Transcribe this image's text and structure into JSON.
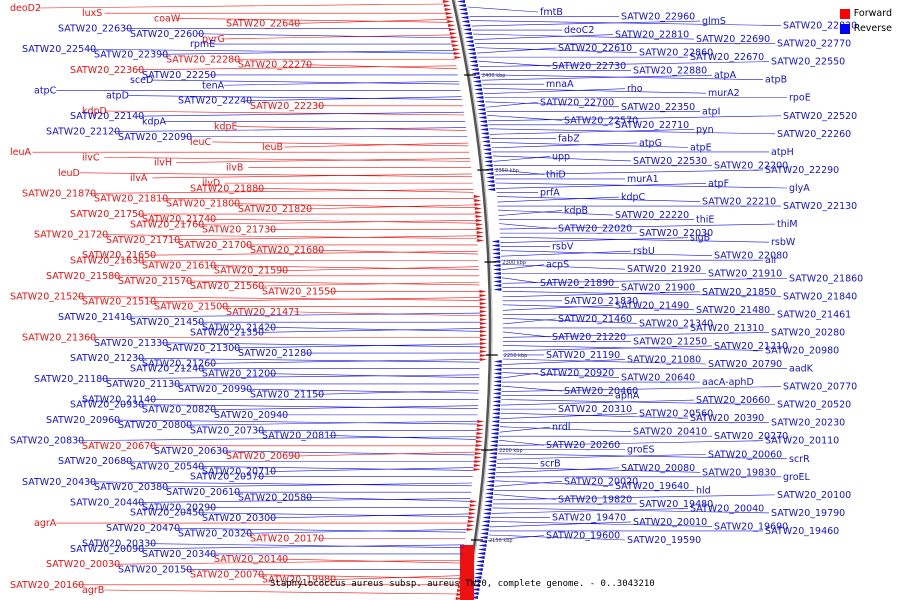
{
  "caption": "Staphylococcus aureus subsp. aureus TW20, complete genome. - 0..3043210",
  "legend": [
    {
      "label": "Forward",
      "color": "#ff0000"
    },
    {
      "label": "Reverse",
      "color": "#0000ff"
    }
  ],
  "colors": {
    "forward": "#ee1111",
    "reverse": "#1111dd",
    "backbone": "#888888"
  },
  "ticks": [
    "2400 kbp",
    "2350 kbp",
    "2300 kbp",
    "2250 kbp",
    "2200 kbp",
    "2150 kbp"
  ],
  "left_labels": [
    "deoD2",
    "luxS",
    "coaW",
    "SATW20_22640",
    "SATW20_22630",
    "SATW20_22600",
    "pyrG",
    "rpmE",
    "SATW20_22540",
    "SATW20_22390",
    "SATW20_22280",
    "SATW20_22270",
    "SATW20_22360",
    "SATW20_22250",
    "sceD",
    "tenA",
    "atpC",
    "atpD",
    "SATW20_22240",
    "SATW20_22230",
    "kdpD",
    "SATW20_22140",
    "kdpA",
    "kdpE",
    "SATW20_22120",
    "SATW20_22090",
    "leuC",
    "leuB",
    "leuA",
    "ilvC",
    "ilvH",
    "ilvB",
    "leuD",
    "ilvA",
    "ilvD",
    "SATW20_21880",
    "SATW20_21870",
    "SATW20_21810",
    "SATW20_21800",
    "SATW20_21820",
    "SATW20_21750",
    "SATW20_21740",
    "SATW20_21760",
    "SATW20_21730",
    "SATW20_21720",
    "SATW20_21710",
    "SATW20_21700",
    "SATW20_21680",
    "SATW20_21650",
    "SATW20_21630",
    "SATW20_21610",
    "SATW20_21590",
    "SATW20_21580",
    "SATW20_21570",
    "SATW20_21560",
    "SATW20_21550",
    "SATW20_21520",
    "SATW20_21510",
    "SATW20_21500",
    "SATW20_21471",
    "SATW20_21410",
    "SATW20_21450",
    "SATW20_21420",
    "SATW20_21350",
    "SATW20_21360",
    "SATW20_21330",
    "SATW20_21300",
    "SATW20_21280",
    "SATW20_21230",
    "SATW20_21260",
    "SATW20_21240",
    "SATW20_21200",
    "SATW20_21180",
    "SATW20_21130",
    "SATW20_20990",
    "SATW20_21150",
    "SATW20_21140",
    "SATW20_20930",
    "SATW20_20820",
    "SATW20_20940",
    "SATW20_20960",
    "SATW20_20800",
    "SATW20_20730",
    "SATW20_20810",
    "SATW20_20830",
    "SATW20_20670",
    "SATW20_20630",
    "SATW20_20690",
    "SATW20_20680",
    "SATW20_20540",
    "SATW20_20710",
    "SATW20_20570",
    "SATW20_20430",
    "SATW20_20380",
    "SATW20_20610",
    "SATW20_20580",
    "SATW20_20440",
    "SATW20_20290",
    "SATW20_20450",
    "SATW20_20300",
    "agrA",
    "SATW20_20470",
    "SATW20_20320",
    "SATW20_20170",
    "SATW20_20330",
    "SATW20_20090",
    "SATW20_20340",
    "SATW20_20140",
    "SATW20_20030",
    "SATW20_20150",
    "SATW20_20070",
    "SATW20_19980",
    "SATW20_20160",
    "agrB"
  ],
  "right_labels": [
    "fmtB",
    "SATW20_22960",
    "glmS",
    "SATW20_22820",
    "deoC2",
    "SATW20_22810",
    "SATW20_22690",
    "SATW20_22770",
    "SATW20_22610",
    "SATW20_22860",
    "SATW20_22670",
    "SATW20_22550",
    "SATW20_22730",
    "SATW20_22880",
    "atpA",
    "atpB",
    "mnaA",
    "rho",
    "murA2",
    "rpoE",
    "SATW20_22700",
    "SATW20_22350",
    "atpI",
    "SATW20_22520",
    "SATW20_22570",
    "SATW20_22710",
    "pyn",
    "SATW20_22260",
    "fabZ",
    "atpG",
    "atpE",
    "atpH",
    "upp",
    "SATW20_22530",
    "SATW20_22200",
    "SATW20_22290",
    "thiD",
    "murA1",
    "atpF",
    "glyA",
    "prfA",
    "kdpC",
    "SATW20_22210",
    "SATW20_22130",
    "kdpB",
    "SATW20_22220",
    "thiE",
    "thiM",
    "SATW20_22020",
    "SATW20_22030",
    "sigB",
    "rsbW",
    "rsbV",
    "rsbU",
    "SATW20_22080",
    "alr",
    "acpS",
    "SATW20_21920",
    "SATW20_21910",
    "SATW20_21860",
    "SATW20_21890",
    "SATW20_21900",
    "SATW20_21850",
    "SATW20_21840",
    "SATW20_21830",
    "SATW20_21490",
    "SATW20_21480",
    "SATW20_21461",
    "SATW20_21460",
    "SATW20_21340",
    "SATW20_21310",
    "SATW20_20280",
    "SATW20_21220",
    "SATW20_21250",
    "SATW20_21210",
    "SATW20_20980",
    "SATW20_21190",
    "SATW20_21080",
    "SATW20_20790",
    "aadK",
    "SATW20_20920",
    "SATW20_20640",
    "aacA-aphD",
    "SATW20_20770",
    "SATW20_20460",
    "aphA",
    "SATW20_20660",
    "SATW20_20520",
    "SATW20_20310",
    "SATW20_20560",
    "SATW20_20390",
    "SATW20_20230",
    "nrdI",
    "SATW20_20410",
    "SATW20_20270",
    "SATW20_20110",
    "SATW20_20260",
    "groES",
    "SATW20_20060",
    "scrR",
    "scrB",
    "SATW20_20080",
    "SATW20_19830",
    "groEL",
    "SATW20_20020",
    "SATW20_19640",
    "hld",
    "SATW20_20100",
    "SATW20_19820",
    "SATW20_19480",
    "SATW20_20040",
    "SATW20_19790",
    "SATW20_19470",
    "SATW20_20010",
    "SATW20_19690",
    "SATW20_19460",
    "SATW20_19600",
    "SATW20_19590"
  ]
}
